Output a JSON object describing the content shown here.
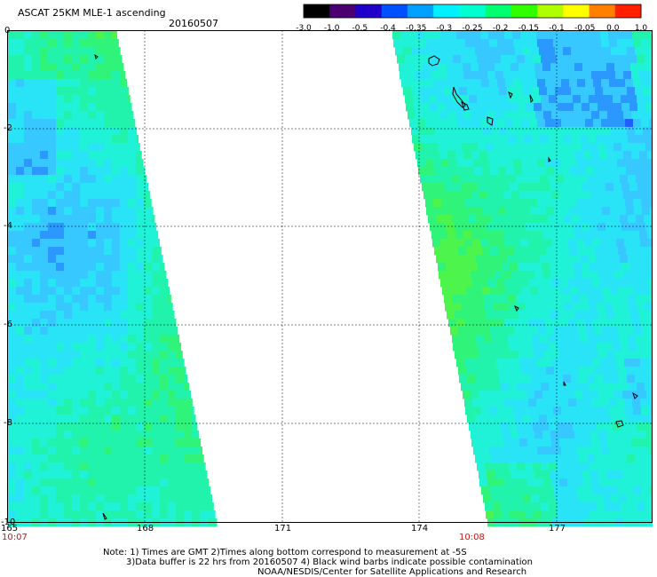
{
  "header": {
    "title": "ASCAT 25KM MLE-1 ascending",
    "date": "20160507"
  },
  "colorbar": {
    "labels": [
      "-3.0",
      "-1.0",
      "-0.5",
      "-0.4",
      "-0.35",
      "-0.3",
      "-0.25",
      "-0.2",
      "-0.15",
      "-0.1",
      "-0.05",
      "0.0",
      "1.0"
    ],
    "colors": [
      "#000000",
      "#4a0070",
      "#1e00c8",
      "#0050ff",
      "#00a0ff",
      "#00f0ff",
      "#00ffd0",
      "#00ff70",
      "#30ff00",
      "#b0ff00",
      "#ffff00",
      "#ff8000",
      "#ff2000"
    ]
  },
  "map": {
    "lon_labels": [
      "165",
      "168",
      "171",
      "174",
      "177"
    ],
    "lat_labels": [
      "0",
      "-2",
      "-4",
      "-6",
      "-8",
      "-10"
    ],
    "time_left": "10:07",
    "time_right": "10:08",
    "lon_range": [
      165,
      179.2
    ],
    "lat_range": [
      -10,
      0
    ]
  },
  "notes": {
    "line1": "Note: 1) Times are GMT 2)Times along bottom correspond to measurement at -5S",
    "line2": "3)Data buffer is 22 hrs from 20160507 4) Black wind barbs indicate possible contamination",
    "line3": "NOAA/NESDIS/Center for Satellite Applications and Research"
  }
}
